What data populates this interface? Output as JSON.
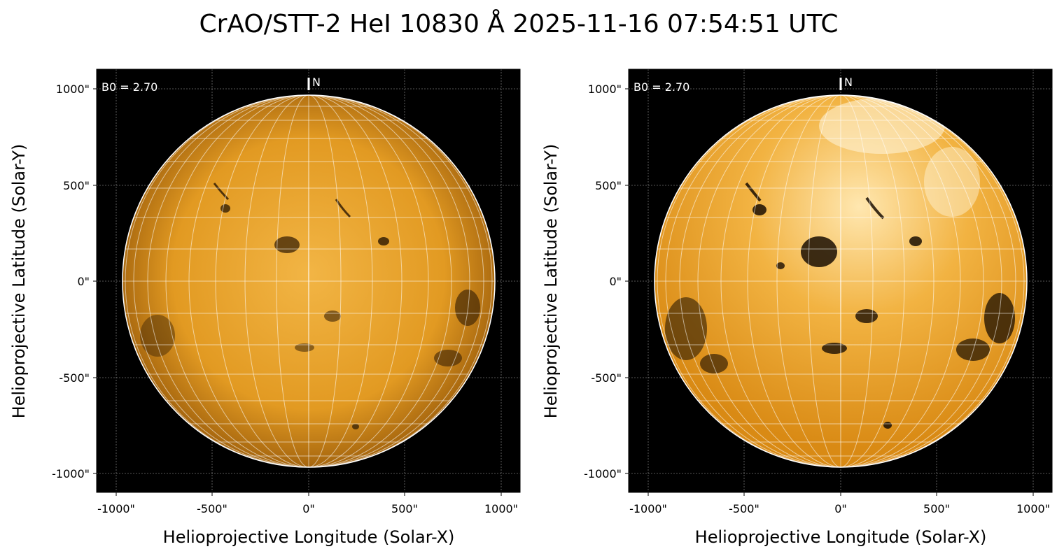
{
  "title": "CrAO/STT-2 HeI 10830 Å 2025-11-16 07:54:51 UTC",
  "colors": {
    "disk_base": "#E79A1E",
    "disk_bright": "#FFE3A0",
    "background": "#000000",
    "grid": "#ffffff"
  },
  "panels": [
    {
      "id": "left",
      "b0_label": "B0 = 2.70",
      "north_label": "N",
      "xlabel": "Helioprojective Longitude (Solar-X)",
      "ylabel": "Helioprojective Latitude (Solar-Y)",
      "xticks": [
        "-1000\"",
        "-500\"",
        "0\"",
        "500\"",
        "1000\""
      ],
      "yticks": [
        "1000\"",
        "500\"",
        "0\"",
        "-500\"",
        "-1000\""
      ],
      "variant": "normal"
    },
    {
      "id": "right",
      "b0_label": "B0 = 2.70",
      "north_label": "N",
      "xlabel": "Helioprojective Longitude (Solar-X)",
      "ylabel": "Helioprojective Latitude (Solar-Y)",
      "xticks": [
        "-1000\"",
        "-500\"",
        "0\"",
        "500\"",
        "1000\""
      ],
      "yticks": [
        "1000\"",
        "500\"",
        "0\"",
        "-500\"",
        "-1000\""
      ],
      "variant": "enhanced"
    }
  ]
}
